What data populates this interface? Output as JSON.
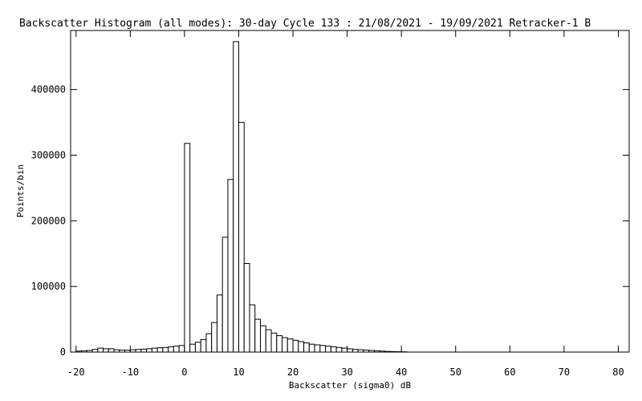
{
  "chart_data": {
    "type": "bar",
    "title": "Backscatter Histogram (all modes): 30-day Cycle 133 : 21/08/2021 - 19/09/2021 Retracker-1 B",
    "xlabel": "Backscatter (sigma0) dB",
    "ylabel": "Points/bin",
    "xlim": [
      -21,
      82
    ],
    "ylim": [
      0,
      490000
    ],
    "xticks": [
      -20,
      -10,
      0,
      10,
      20,
      30,
      40,
      50,
      60,
      70,
      80
    ],
    "yticks": [
      0,
      100000,
      200000,
      300000,
      400000
    ],
    "bin_width": 1,
    "bin_start": -20,
    "values": [
      1500,
      2000,
      2500,
      4000,
      6000,
      5000,
      5000,
      3500,
      3000,
      3000,
      3500,
      4000,
      4500,
      5000,
      6000,
      6500,
      7000,
      8000,
      9000,
      10000,
      318000,
      12000,
      15000,
      19000,
      28000,
      45000,
      87000,
      175000,
      263000,
      473000,
      350000,
      135000,
      72000,
      50000,
      40000,
      34000,
      29000,
      25000,
      22000,
      20000,
      18000,
      16000,
      14000,
      12000,
      11000,
      10000,
      9000,
      8000,
      7000,
      6000,
      5000,
      4000,
      3500,
      3000,
      2500,
      2000,
      1500,
      1000,
      800,
      600,
      400
    ]
  }
}
